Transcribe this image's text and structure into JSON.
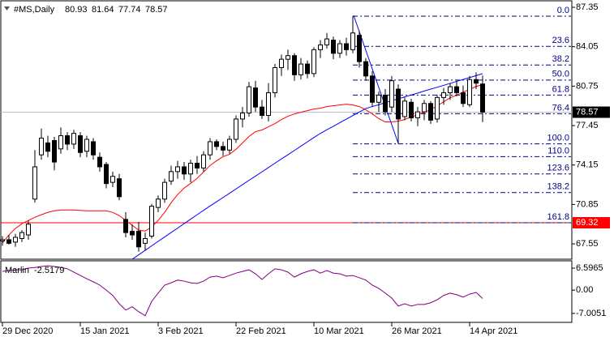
{
  "chart_data": [
    {
      "type": "candlestick",
      "title": "#MS,Daily",
      "categories": [
        "29 Dec 2020",
        null,
        null,
        null,
        null,
        null,
        null,
        null,
        null,
        null,
        null,
        null,
        "15 Jan 2021",
        null,
        null,
        null,
        null,
        null,
        null,
        null,
        null,
        null,
        null,
        null,
        "3 Feb 2021",
        null,
        null,
        null,
        null,
        null,
        null,
        null,
        null,
        null,
        null,
        null,
        "22 Feb 2021",
        null,
        null,
        null,
        null,
        null,
        null,
        null,
        null,
        null,
        null,
        null,
        "10 Mar 2021",
        null,
        null,
        null,
        null,
        null,
        null,
        null,
        null,
        null,
        null,
        null,
        "26 Mar 2021",
        null,
        null,
        null,
        null,
        null,
        null,
        null,
        null,
        null,
        null,
        null,
        "14 Apr 2021",
        null,
        null
      ],
      "open": [
        67.8,
        67.9,
        67.7,
        68.0,
        68.3,
        71.3,
        75.0,
        76.0,
        76.2,
        75.5,
        76.6,
        75.9,
        76.6,
        75.3,
        76.1,
        74.8,
        74.2,
        72.7,
        73.0,
        69.6,
        68.6,
        68.6,
        67.6,
        68.2,
        70.6,
        71.3,
        72.8,
        73.6,
        74.0,
        73.4,
        74.3,
        73.9,
        75.0,
        76.1,
        75.7,
        75.4,
        76.3,
        78.0,
        78.5,
        80.6,
        79.0,
        78.3,
        80.2,
        82.3,
        83.0,
        83.3,
        81.7,
        82.6,
        81.8,
        83.8,
        84.2,
        84.6,
        83.5,
        84.3,
        83.8,
        85.0,
        82.8,
        81.6,
        79.4,
        80.0,
        79.0,
        80.5,
        78.2,
        79.4,
        78.1,
        78.6,
        79.3,
        78.0,
        79.8,
        80.2,
        80.7,
        80.2,
        79.2,
        81.3,
        80.93
      ],
      "high": [
        68.2,
        68.3,
        68.4,
        68.7,
        69.5,
        75.4,
        77.2,
        76.6,
        76.5,
        77.3,
        76.9,
        77.1,
        76.9,
        76.6,
        76.4,
        75.2,
        74.4,
        73.6,
        73.4,
        70.2,
        69.2,
        69.4,
        68.5,
        70.9,
        71.6,
        73.0,
        74.1,
        74.5,
        74.4,
        74.6,
        74.9,
        75.3,
        76.4,
        76.3,
        76.1,
        76.6,
        78.3,
        79.0,
        81.1,
        81.2,
        79.6,
        81.0,
        82.6,
        83.4,
        83.8,
        83.5,
        83.1,
        82.9,
        84.0,
        84.6,
        85.2,
        84.9,
        84.6,
        84.8,
        86.6,
        85.4,
        83.1,
        82.0,
        80.3,
        80.5,
        81.6,
        80.9,
        79.8,
        79.7,
        79.0,
        79.6,
        79.5,
        80.0,
        80.6,
        81.0,
        81.2,
        80.8,
        81.6,
        81.9,
        81.64
      ],
      "low": [
        67.4,
        67.5,
        67.3,
        67.7,
        67.9,
        71.0,
        74.6,
        74.8,
        73.7,
        75.1,
        75.4,
        75.5,
        74.8,
        74.8,
        74.6,
        73.6,
        72.2,
        72.3,
        71.2,
        68.1,
        67.9,
        66.9,
        67.0,
        68.0,
        70.2,
        71.0,
        72.5,
        73.0,
        72.9,
        72.7,
        73.4,
        73.6,
        74.6,
        75.4,
        74.9,
        75.1,
        76.0,
        77.3,
        78.2,
        78.6,
        78.0,
        77.8,
        79.8,
        81.6,
        82.1,
        81.2,
        81.3,
        81.4,
        81.5,
        83.1,
        83.9,
        83.0,
        83.1,
        83.3,
        83.5,
        82.3,
        81.2,
        79.0,
        78.6,
        78.3,
        78.6,
        75.92,
        77.9,
        77.8,
        77.4,
        77.9,
        77.6,
        77.7,
        79.2,
        79.6,
        79.9,
        79.0,
        79.0,
        80.5,
        77.74
      ],
      "close": [
        67.9,
        67.6,
        68.1,
        68.5,
        69.2,
        74.0,
        76.4,
        75.3,
        74.4,
        76.6,
        75.9,
        76.8,
        75.2,
        76.3,
        75.0,
        74.0,
        72.6,
        73.2,
        71.5,
        68.5,
        68.3,
        67.3,
        68.0,
        70.7,
        71.3,
        72.7,
        73.6,
        74.0,
        73.4,
        74.3,
        73.9,
        75.0,
        76.1,
        75.7,
        75.4,
        76.3,
        78.0,
        78.5,
        80.7,
        79.0,
        78.3,
        80.2,
        82.3,
        83.0,
        83.3,
        81.7,
        82.6,
        81.8,
        83.8,
        84.2,
        84.7,
        83.5,
        84.3,
        83.8,
        85.2,
        82.8,
        81.6,
        79.4,
        80.0,
        78.6,
        81.2,
        78.0,
        79.5,
        78.1,
        78.6,
        79.3,
        77.9,
        79.8,
        80.2,
        80.7,
        80.2,
        79.3,
        81.3,
        81.0,
        78.57
      ],
      "series": [
        {
          "color": "#ff0000",
          "values": [
            67.62,
            68.3,
            68.84,
            69.24,
            69.51,
            69.78,
            69.99,
            70.19,
            70.32,
            70.39,
            70.39,
            70.39,
            70.35,
            70.32,
            70.32,
            70.32,
            70.32,
            70.19,
            69.92,
            69.51,
            69.11,
            68.7,
            68.63,
            68.97,
            69.51,
            70.19,
            71.0,
            71.68,
            72.22,
            72.62,
            73.03,
            73.57,
            74.11,
            74.51,
            74.85,
            75.05,
            75.46,
            76.0,
            76.54,
            76.94,
            77.08,
            77.35,
            77.62,
            77.96,
            78.23,
            78.43,
            78.57,
            78.7,
            78.84,
            78.9,
            79.04,
            79.11,
            79.17,
            79.24,
            79.17,
            79.04,
            78.77,
            78.43,
            78.03,
            77.76,
            77.76,
            77.82,
            77.96,
            78.16,
            78.36,
            78.57,
            78.77,
            79.11,
            79.44,
            79.78,
            79.99,
            80.26,
            80.46,
            80.73,
            80.86
          ]
        },
        {
          "color": "#0000ff",
          "values": [
            null,
            null,
            null,
            null,
            null,
            null,
            null,
            null,
            null,
            null,
            null,
            null,
            null,
            null,
            null,
            null,
            null,
            null,
            null,
            null,
            66.27,
            66.64,
            67.01,
            67.39,
            67.76,
            68.13,
            68.5,
            68.87,
            69.25,
            69.62,
            69.99,
            70.36,
            70.72,
            71.08,
            71.43,
            71.79,
            72.15,
            72.51,
            72.87,
            73.22,
            73.58,
            73.94,
            74.3,
            74.66,
            75.01,
            75.37,
            75.73,
            76.09,
            76.45,
            76.8,
            77.1,
            77.39,
            77.69,
            77.99,
            78.29,
            78.58,
            78.88,
            79.04,
            79.2,
            79.37,
            79.53,
            79.69,
            79.85,
            80.01,
            80.17,
            80.34,
            80.5,
            80.66,
            80.82,
            80.98,
            81.15,
            81.31,
            81.47,
            81.63,
            81.8
          ]
        }
      ],
      "ylim": [
        66.27,
        87.89
      ],
      "yticks": [
        67.55,
        70.85,
        74.15,
        77.45,
        80.75,
        84.05,
        87.35
      ],
      "hlines": [
        {
          "value": 69.32,
          "color": "#ff0000"
        }
      ],
      "fibonacci": {
        "high": 86.6,
        "low": 75.92,
        "color": "#00008b",
        "levels": [
          {
            "value": 0,
            "label": "0.0"
          },
          {
            "value": 23.6,
            "label": "23.6"
          },
          {
            "value": 38.2,
            "label": "38.2"
          },
          {
            "value": 50,
            "label": "50.0"
          },
          {
            "value": 61.8,
            "label": "61.8"
          },
          {
            "value": 76.4,
            "label": "76.4"
          },
          {
            "value": 100,
            "label": "100.0"
          },
          {
            "value": 110,
            "label": "110.0"
          },
          {
            "value": 123.6,
            "label": "123.6"
          },
          {
            "value": 138.2,
            "label": "138.2"
          },
          {
            "value": 161.8,
            "label": "161.8"
          }
        ]
      }
    },
    {
      "type": "line",
      "title": "Marlin",
      "series": [
        {
          "color": "#800080",
          "values": [
            5.6,
            5.9,
            6.1,
            6.1,
            6.6,
            6.8,
            7.1,
            7.3,
            7.1,
            6.8,
            6.4,
            5.4,
            4.4,
            3.4,
            2.5,
            1.5,
            0.0,
            -1.6,
            -4.1,
            -6.0,
            -5.0,
            -6.5,
            -7.7,
            -3.4,
            -0.9,
            1.5,
            2.2,
            3.0,
            2.7,
            2.2,
            2.0,
            2.7,
            3.9,
            4.2,
            3.7,
            4.4,
            5.1,
            5.6,
            6.1,
            4.9,
            3.2,
            4.9,
            6.4,
            6.1,
            5.4,
            3.9,
            4.9,
            5.6,
            6.1,
            5.1,
            5.9,
            5.1,
            4.9,
            4.2,
            4.4,
            3.7,
            3.0,
            1.5,
            0.5,
            -0.9,
            -2.4,
            -4.8,
            -4.1,
            -4.8,
            -4.3,
            -4.3,
            -3.8,
            -2.9,
            -1.6,
            -0.9,
            -1.4,
            -2.1,
            -1.2,
            -0.7,
            -2.5179
          ]
        }
      ],
      "ylim": [
        -9.7,
        8.8
      ],
      "yticks": [
        -7.0051,
        {
          "value": 0,
          "label": "0.00"
        },
        6.5965
      ]
    }
  ]
}
